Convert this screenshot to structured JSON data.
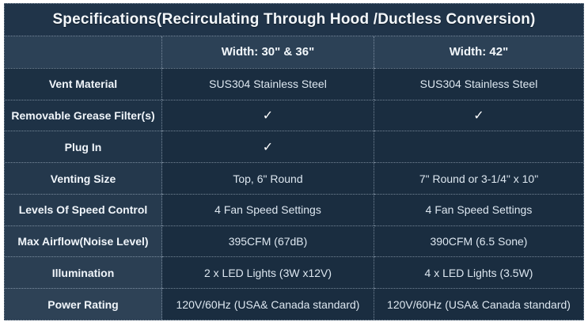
{
  "title": "Specifications(Recirculating Through Hood /Ductless Conversion)",
  "columns": {
    "label": "",
    "col1": "Width: 30\" & 36\"",
    "col2": "Width: 42\""
  },
  "rows": [
    {
      "label": "Vent Material",
      "col1": "SUS304 Stainless Steel",
      "col2": "SUS304 Stainless Steel"
    },
    {
      "label": "Removable Grease Filter(s)",
      "col1": "✓",
      "col2": "✓"
    },
    {
      "label": "Plug In",
      "col1": "✓",
      "col2": ""
    },
    {
      "label": "Venting Size",
      "col1": "Top, 6\" Round",
      "col2": "7\" Round or 3-1/4\" x 10\""
    },
    {
      "label": "Levels Of Speed Control",
      "col1": "4 Fan Speed Settings",
      "col2": "4 Fan Speed Settings"
    },
    {
      "label": "Max Airflow(Noise Level)",
      "col1": "395CFM (67dB)",
      "col2": "390CFM (6.5 Sone)"
    },
    {
      "label": "Illumination",
      "col1": "2 x  LED Lights (3W x12V)",
      "col2": "4 x LED Lights (3.5W)"
    },
    {
      "label": "Power Rating",
      "col1": "120V/60Hz (USA& Canada standard)",
      "col2": "120V/60Hz (USA& Canada standard)"
    }
  ],
  "colors": {
    "frame": "#ffffff",
    "title_bg": "#203449",
    "header_bg": "#2c4156",
    "label_col_top": "#1c3043",
    "label_col_bottom": "#2e4256",
    "value_cell_bg": "#1a2d40",
    "border_dotted": "#cddceb",
    "text": "#ffffff"
  }
}
